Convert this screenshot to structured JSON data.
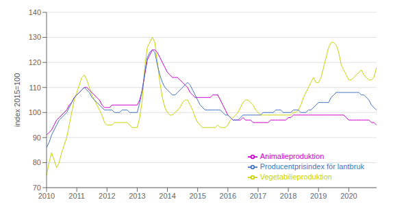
{
  "chart_data": {
    "type": "line",
    "ylabel": "index 2015=100",
    "x": [
      2010,
      2010.0833,
      2010.1667,
      2010.25,
      2010.3333,
      2010.4167,
      2010.5,
      2010.5833,
      2010.6667,
      2010.75,
      2010.8333,
      2010.9167,
      2011,
      2011.0833,
      2011.1667,
      2011.25,
      2011.3333,
      2011.4167,
      2011.5,
      2011.5833,
      2011.6667,
      2011.75,
      2011.8333,
      2011.9167,
      2012,
      2012.0833,
      2012.1667,
      2012.25,
      2012.3333,
      2012.4167,
      2012.5,
      2012.5833,
      2012.6667,
      2012.75,
      2012.8333,
      2012.9167,
      2013,
      2013.0833,
      2013.1667,
      2013.25,
      2013.3333,
      2013.4167,
      2013.5,
      2013.5833,
      2013.6667,
      2013.75,
      2013.8333,
      2013.9167,
      2014,
      2014.0833,
      2014.1667,
      2014.25,
      2014.3333,
      2014.4167,
      2014.5,
      2014.5833,
      2014.6667,
      2014.75,
      2014.8333,
      2014.9167,
      2015,
      2015.0833,
      2015.1667,
      2015.25,
      2015.3333,
      2015.4167,
      2015.5,
      2015.5833,
      2015.6667,
      2015.75,
      2015.8333,
      2015.9167,
      2016,
      2016.0833,
      2016.1667,
      2016.25,
      2016.3333,
      2016.4167,
      2016.5,
      2016.5833,
      2016.6667,
      2016.75,
      2016.8333,
      2016.9167,
      2017,
      2017.0833,
      2017.1667,
      2017.25,
      2017.3333,
      2017.4167,
      2017.5,
      2017.5833,
      2017.6667,
      2017.75,
      2017.8333,
      2017.9167,
      2018,
      2018.0833,
      2018.1667,
      2018.25,
      2018.3333,
      2018.4167,
      2018.5,
      2018.5833,
      2018.6667,
      2018.75,
      2018.8333,
      2018.9167,
      2019,
      2019.0833,
      2019.1667,
      2019.25,
      2019.3333,
      2019.4167,
      2019.5,
      2019.5833,
      2019.6667,
      2019.75,
      2019.8333,
      2019.9167,
      2020,
      2020.0833,
      2020.1667,
      2020.25,
      2020.3333,
      2020.4167,
      2020.5,
      2020.5833,
      2020.6667,
      2020.75,
      2020.8333,
      2020.9167
    ],
    "xlim": [
      2010.0,
      2020.92
    ],
    "xticks": [
      2010,
      2011,
      2012,
      2013,
      2014,
      2015,
      2016,
      2017,
      2018,
      2019,
      2020
    ],
    "ylim": [
      70,
      140
    ],
    "yticks": [
      70,
      80,
      90,
      100,
      110,
      120,
      130,
      140
    ],
    "grid": true,
    "legend": "lower right",
    "series": [
      {
        "name": "Vegetabilieproduktion",
        "color": "#c8d400",
        "values": [
          75,
          80,
          84,
          81,
          78,
          80,
          84,
          87,
          90,
          95,
          100,
          105,
          108,
          111,
          114,
          115,
          113,
          110,
          107,
          105,
          103,
          101,
          99,
          96,
          95,
          95,
          95,
          96,
          96,
          96,
          96,
          96,
          96,
          95,
          94,
          94,
          94,
          98,
          105,
          118,
          126,
          128,
          130,
          128,
          120,
          112,
          106,
          102,
          100,
          99,
          99,
          100,
          101,
          102,
          104,
          105,
          105,
          103,
          101,
          98,
          96,
          95,
          94,
          94,
          94,
          94,
          94,
          94,
          95,
          94,
          94,
          94,
          95,
          97,
          98,
          99,
          100,
          102,
          104,
          105,
          105,
          104,
          103,
          101,
          100,
          99,
          99,
          99,
          99,
          99,
          99,
          99,
          99,
          99,
          99,
          99,
          99,
          99,
          100,
          100,
          101,
          103,
          106,
          108,
          110,
          112,
          114,
          112,
          112,
          114,
          118,
          122,
          126,
          128,
          128,
          127,
          124,
          119,
          117,
          115,
          113,
          113,
          114,
          115,
          116,
          117,
          115,
          114,
          113,
          113,
          114,
          118
        ]
      },
      {
        "name": "Animalieproduktion",
        "color": "#cc00cc",
        "values": [
          91,
          92,
          93,
          95,
          97,
          98,
          99,
          100,
          101,
          103,
          104,
          106,
          107,
          108,
          109,
          110,
          110,
          109,
          108,
          107,
          106,
          105,
          103,
          102,
          102,
          102,
          103,
          103,
          103,
          103,
          103,
          103,
          103,
          103,
          103,
          103,
          103,
          105,
          109,
          115,
          121,
          123,
          125,
          125,
          124,
          122,
          120,
          118,
          116,
          115,
          114,
          114,
          114,
          113,
          112,
          111,
          110,
          108,
          107,
          106,
          106,
          106,
          106,
          106,
          106,
          106,
          107,
          107,
          107,
          105,
          103,
          101,
          99,
          98,
          97,
          97,
          97,
          97,
          98,
          97,
          97,
          97,
          96,
          96,
          96,
          96,
          96,
          96,
          96,
          97,
          97,
          97,
          97,
          97,
          97,
          97,
          98,
          98,
          99,
          99,
          99,
          99,
          99,
          99,
          99,
          99,
          99,
          99,
          99,
          99,
          99,
          99,
          99,
          99,
          99,
          99,
          99,
          99,
          99,
          98,
          97,
          97,
          97,
          97,
          97,
          97,
          97,
          97,
          97,
          96,
          96,
          95
        ]
      },
      {
        "name": "Producentprisindex för lantbruk",
        "color": "#4472c4",
        "values": [
          86,
          88,
          91,
          93,
          95,
          97,
          98,
          99,
          100,
          102,
          104,
          106,
          107,
          108,
          109,
          110,
          109,
          108,
          106,
          105,
          104,
          103,
          102,
          101,
          101,
          101,
          101,
          100,
          100,
          100,
          101,
          101,
          101,
          100,
          100,
          100,
          100,
          104,
          109,
          116,
          122,
          124,
          125,
          124,
          119,
          115,
          112,
          110,
          109,
          108,
          107,
          107,
          108,
          109,
          110,
          111,
          112,
          111,
          109,
          107,
          105,
          103,
          102,
          101,
          101,
          101,
          101,
          101,
          101,
          101,
          100,
          99,
          99,
          98,
          97,
          97,
          97,
          98,
          99,
          99,
          99,
          99,
          99,
          99,
          99,
          99,
          100,
          100,
          100,
          100,
          100,
          101,
          101,
          101,
          100,
          100,
          100,
          100,
          101,
          101,
          101,
          100,
          100,
          100,
          101,
          101,
          102,
          103,
          104,
          104,
          104,
          104,
          104,
          106,
          107,
          108,
          108,
          108,
          108,
          108,
          108,
          108,
          108,
          108,
          108,
          107,
          107,
          106,
          105,
          103,
          102,
          101
        ]
      }
    ]
  }
}
